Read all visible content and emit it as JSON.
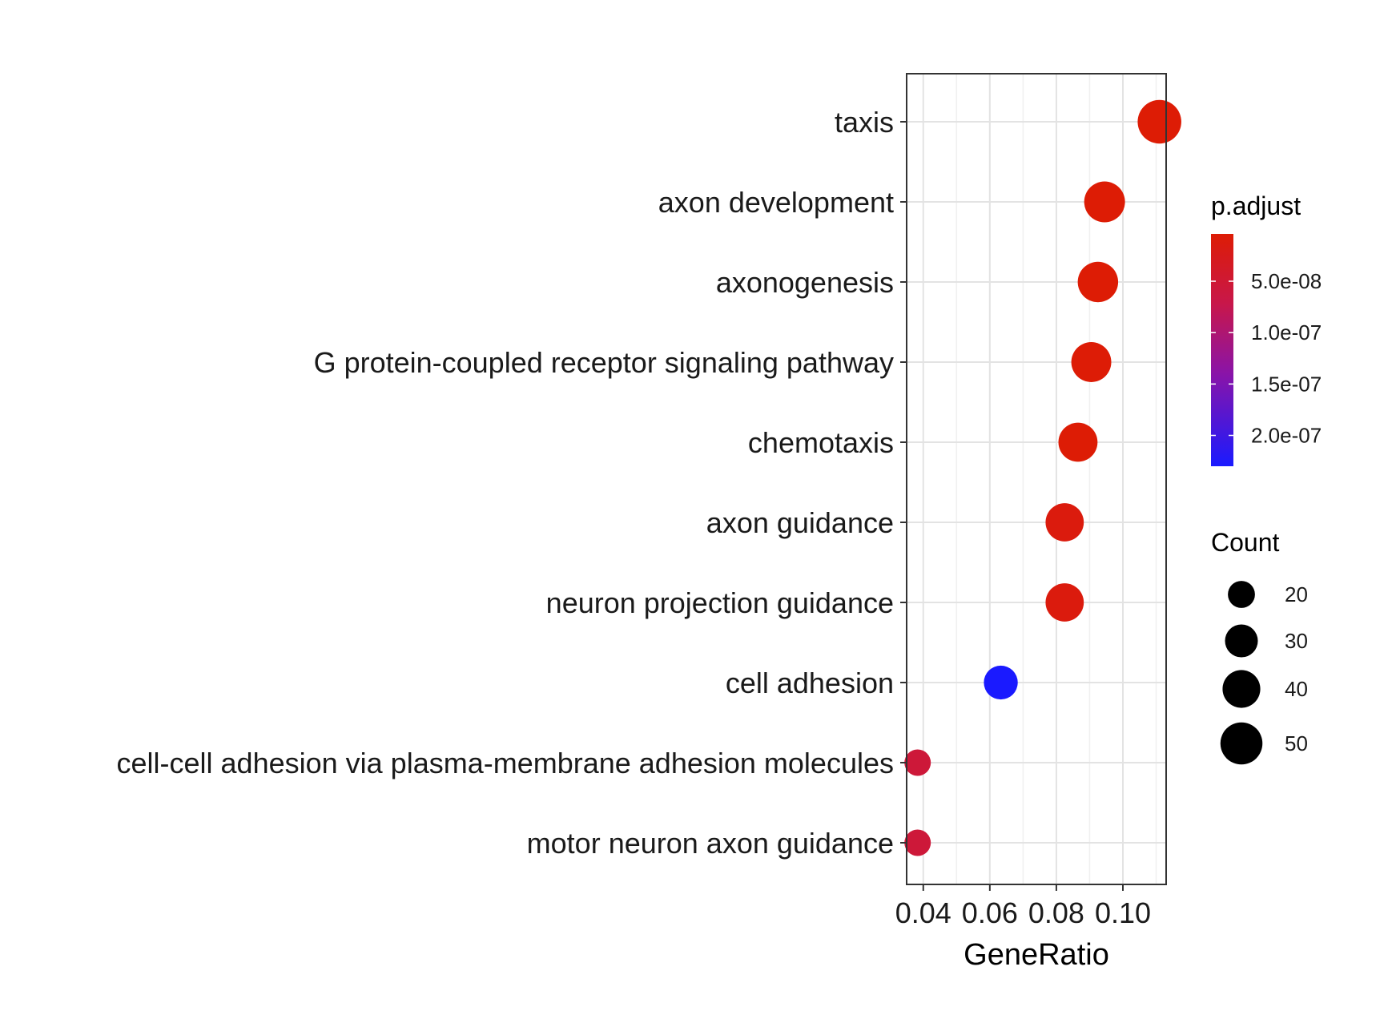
{
  "chart_data": {
    "type": "scatter",
    "xlabel": "GeneRatio",
    "xlim": [
      0.035,
      0.113
    ],
    "x_ticks": [
      0.04,
      0.06,
      0.08,
      0.1
    ],
    "x_tick_labels": [
      "0.04",
      "0.06",
      "0.08",
      "0.10"
    ],
    "grid": true,
    "categories": [
      "taxis",
      "axon development",
      "axonogenesis",
      "G protein-coupled receptor signaling pathway",
      "chemotaxis",
      "axon guidance",
      "neuron projection guidance",
      "cell adhesion",
      "cell-cell adhesion via plasma-membrane adhesion molecules",
      "motor neuron axon guidance"
    ],
    "points": [
      {
        "category": "taxis",
        "gene_ratio": 0.111,
        "count": 54,
        "p_adjust": 4e-09
      },
      {
        "category": "axon development",
        "gene_ratio": 0.0945,
        "count": 47,
        "p_adjust": 4e-09
      },
      {
        "category": "axonogenesis",
        "gene_ratio": 0.0925,
        "count": 46,
        "p_adjust": 4e-09
      },
      {
        "category": "G protein-coupled receptor signaling pathway",
        "gene_ratio": 0.0905,
        "count": 45,
        "p_adjust": 4.5e-09
      },
      {
        "category": "chemotaxis",
        "gene_ratio": 0.0865,
        "count": 43,
        "p_adjust": 4e-09
      },
      {
        "category": "axon guidance",
        "gene_ratio": 0.0825,
        "count": 41,
        "p_adjust": 1.2e-08
      },
      {
        "category": "neuron projection guidance",
        "gene_ratio": 0.0825,
        "count": 41,
        "p_adjust": 1.2e-08
      },
      {
        "category": "cell adhesion",
        "gene_ratio": 0.0633,
        "count": 32,
        "p_adjust": 2.3e-07
      },
      {
        "category": "cell-cell adhesion via plasma-membrane adhesion molecules",
        "gene_ratio": 0.0383,
        "count": 19,
        "p_adjust": 5.5e-08
      },
      {
        "category": "motor neuron axon guidance",
        "gene_ratio": 0.0383,
        "count": 19,
        "p_adjust": 5.5e-08
      }
    ],
    "color_legend": {
      "title": "p.adjust",
      "breaks": [
        5e-08,
        1e-07,
        1.5e-07,
        2e-07
      ],
      "labels": [
        "5.0e-08",
        "1.0e-07",
        "1.5e-07",
        "2.0e-07"
      ],
      "limits": [
        4e-09,
        2.3e-07
      ],
      "low_color": "#dd1c05",
      "high_color": "#1a1aff",
      "placement": "right"
    },
    "size_legend": {
      "title": "Count",
      "breaks": [
        20,
        30,
        40,
        50
      ],
      "labels": [
        "20",
        "30",
        "40",
        "50"
      ],
      "placement": "right"
    }
  }
}
